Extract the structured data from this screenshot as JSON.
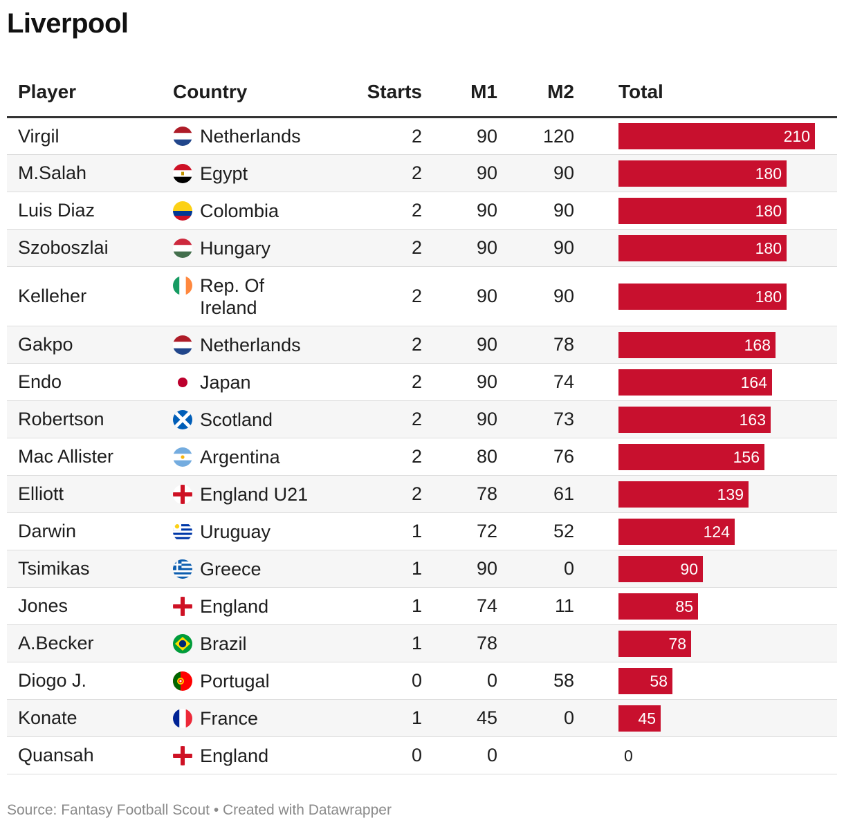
{
  "title": "Liverpool",
  "source": "Source: Fantasy Football Scout • Created with Datawrapper",
  "headers": {
    "player": "Player",
    "country": "Country",
    "starts": "Starts",
    "m1": "M1",
    "m2": "M2",
    "total": "Total"
  },
  "colors": {
    "bar": "#c8102e"
  },
  "chart_data": {
    "type": "table",
    "title": "Liverpool",
    "columns": [
      "Player",
      "Country",
      "Starts",
      "M1",
      "M2",
      "Total"
    ],
    "bar_column": "Total",
    "xlim": [
      0,
      210
    ],
    "rows": [
      {
        "player": "Virgil",
        "country": "Netherlands",
        "flag": "netherlands-flag-icon",
        "starts": "2",
        "m1": "90",
        "m2": "120",
        "total": 210
      },
      {
        "player": "M.Salah",
        "country": "Egypt",
        "flag": "egypt-flag-icon",
        "starts": "2",
        "m1": "90",
        "m2": "90",
        "total": 180
      },
      {
        "player": "Luis Diaz",
        "country": "Colombia",
        "flag": "colombia-flag-icon",
        "starts": "2",
        "m1": "90",
        "m2": "90",
        "total": 180
      },
      {
        "player": "Szoboszlai",
        "country": "Hungary",
        "flag": "hungary-flag-icon",
        "starts": "2",
        "m1": "90",
        "m2": "90",
        "total": 180
      },
      {
        "player": "Kelleher",
        "country": "Rep. Of Ireland",
        "flag": "ireland-flag-icon",
        "starts": "2",
        "m1": "90",
        "m2": "90",
        "total": 180
      },
      {
        "player": "Gakpo",
        "country": "Netherlands",
        "flag": "netherlands-flag-icon",
        "starts": "2",
        "m1": "90",
        "m2": "78",
        "total": 168
      },
      {
        "player": "Endo",
        "country": "Japan",
        "flag": "japan-flag-icon",
        "starts": "2",
        "m1": "90",
        "m2": "74",
        "total": 164
      },
      {
        "player": "Robertson",
        "country": "Scotland",
        "flag": "scotland-flag-icon",
        "starts": "2",
        "m1": "90",
        "m2": "73",
        "total": 163
      },
      {
        "player": "Mac Allister",
        "country": "Argentina",
        "flag": "argentina-flag-icon",
        "starts": "2",
        "m1": "80",
        "m2": "76",
        "total": 156
      },
      {
        "player": "Elliott",
        "country": "England U21",
        "flag": "england-flag-icon",
        "starts": "2",
        "m1": "78",
        "m2": "61",
        "total": 139
      },
      {
        "player": "Darwin",
        "country": "Uruguay",
        "flag": "uruguay-flag-icon",
        "starts": "1",
        "m1": "72",
        "m2": "52",
        "total": 124
      },
      {
        "player": "Tsimikas",
        "country": "Greece",
        "flag": "greece-flag-icon",
        "starts": "1",
        "m1": "90",
        "m2": "0",
        "total": 90
      },
      {
        "player": "Jones",
        "country": "England",
        "flag": "england-flag-icon",
        "starts": "1",
        "m1": "74",
        "m2": "11",
        "total": 85
      },
      {
        "player": "A.Becker",
        "country": "Brazil",
        "flag": "brazil-flag-icon",
        "starts": "1",
        "m1": "78",
        "m2": "",
        "total": 78
      },
      {
        "player": "Diogo J.",
        "country": "Portugal",
        "flag": "portugal-flag-icon",
        "starts": "0",
        "m1": "0",
        "m2": "58",
        "total": 58
      },
      {
        "player": "Konate",
        "country": "France",
        "flag": "france-flag-icon",
        "starts": "1",
        "m1": "45",
        "m2": "0",
        "total": 45
      },
      {
        "player": "Quansah",
        "country": "England",
        "flag": "england-flag-icon",
        "starts": "0",
        "m1": "0",
        "m2": "",
        "total": 0
      }
    ]
  }
}
